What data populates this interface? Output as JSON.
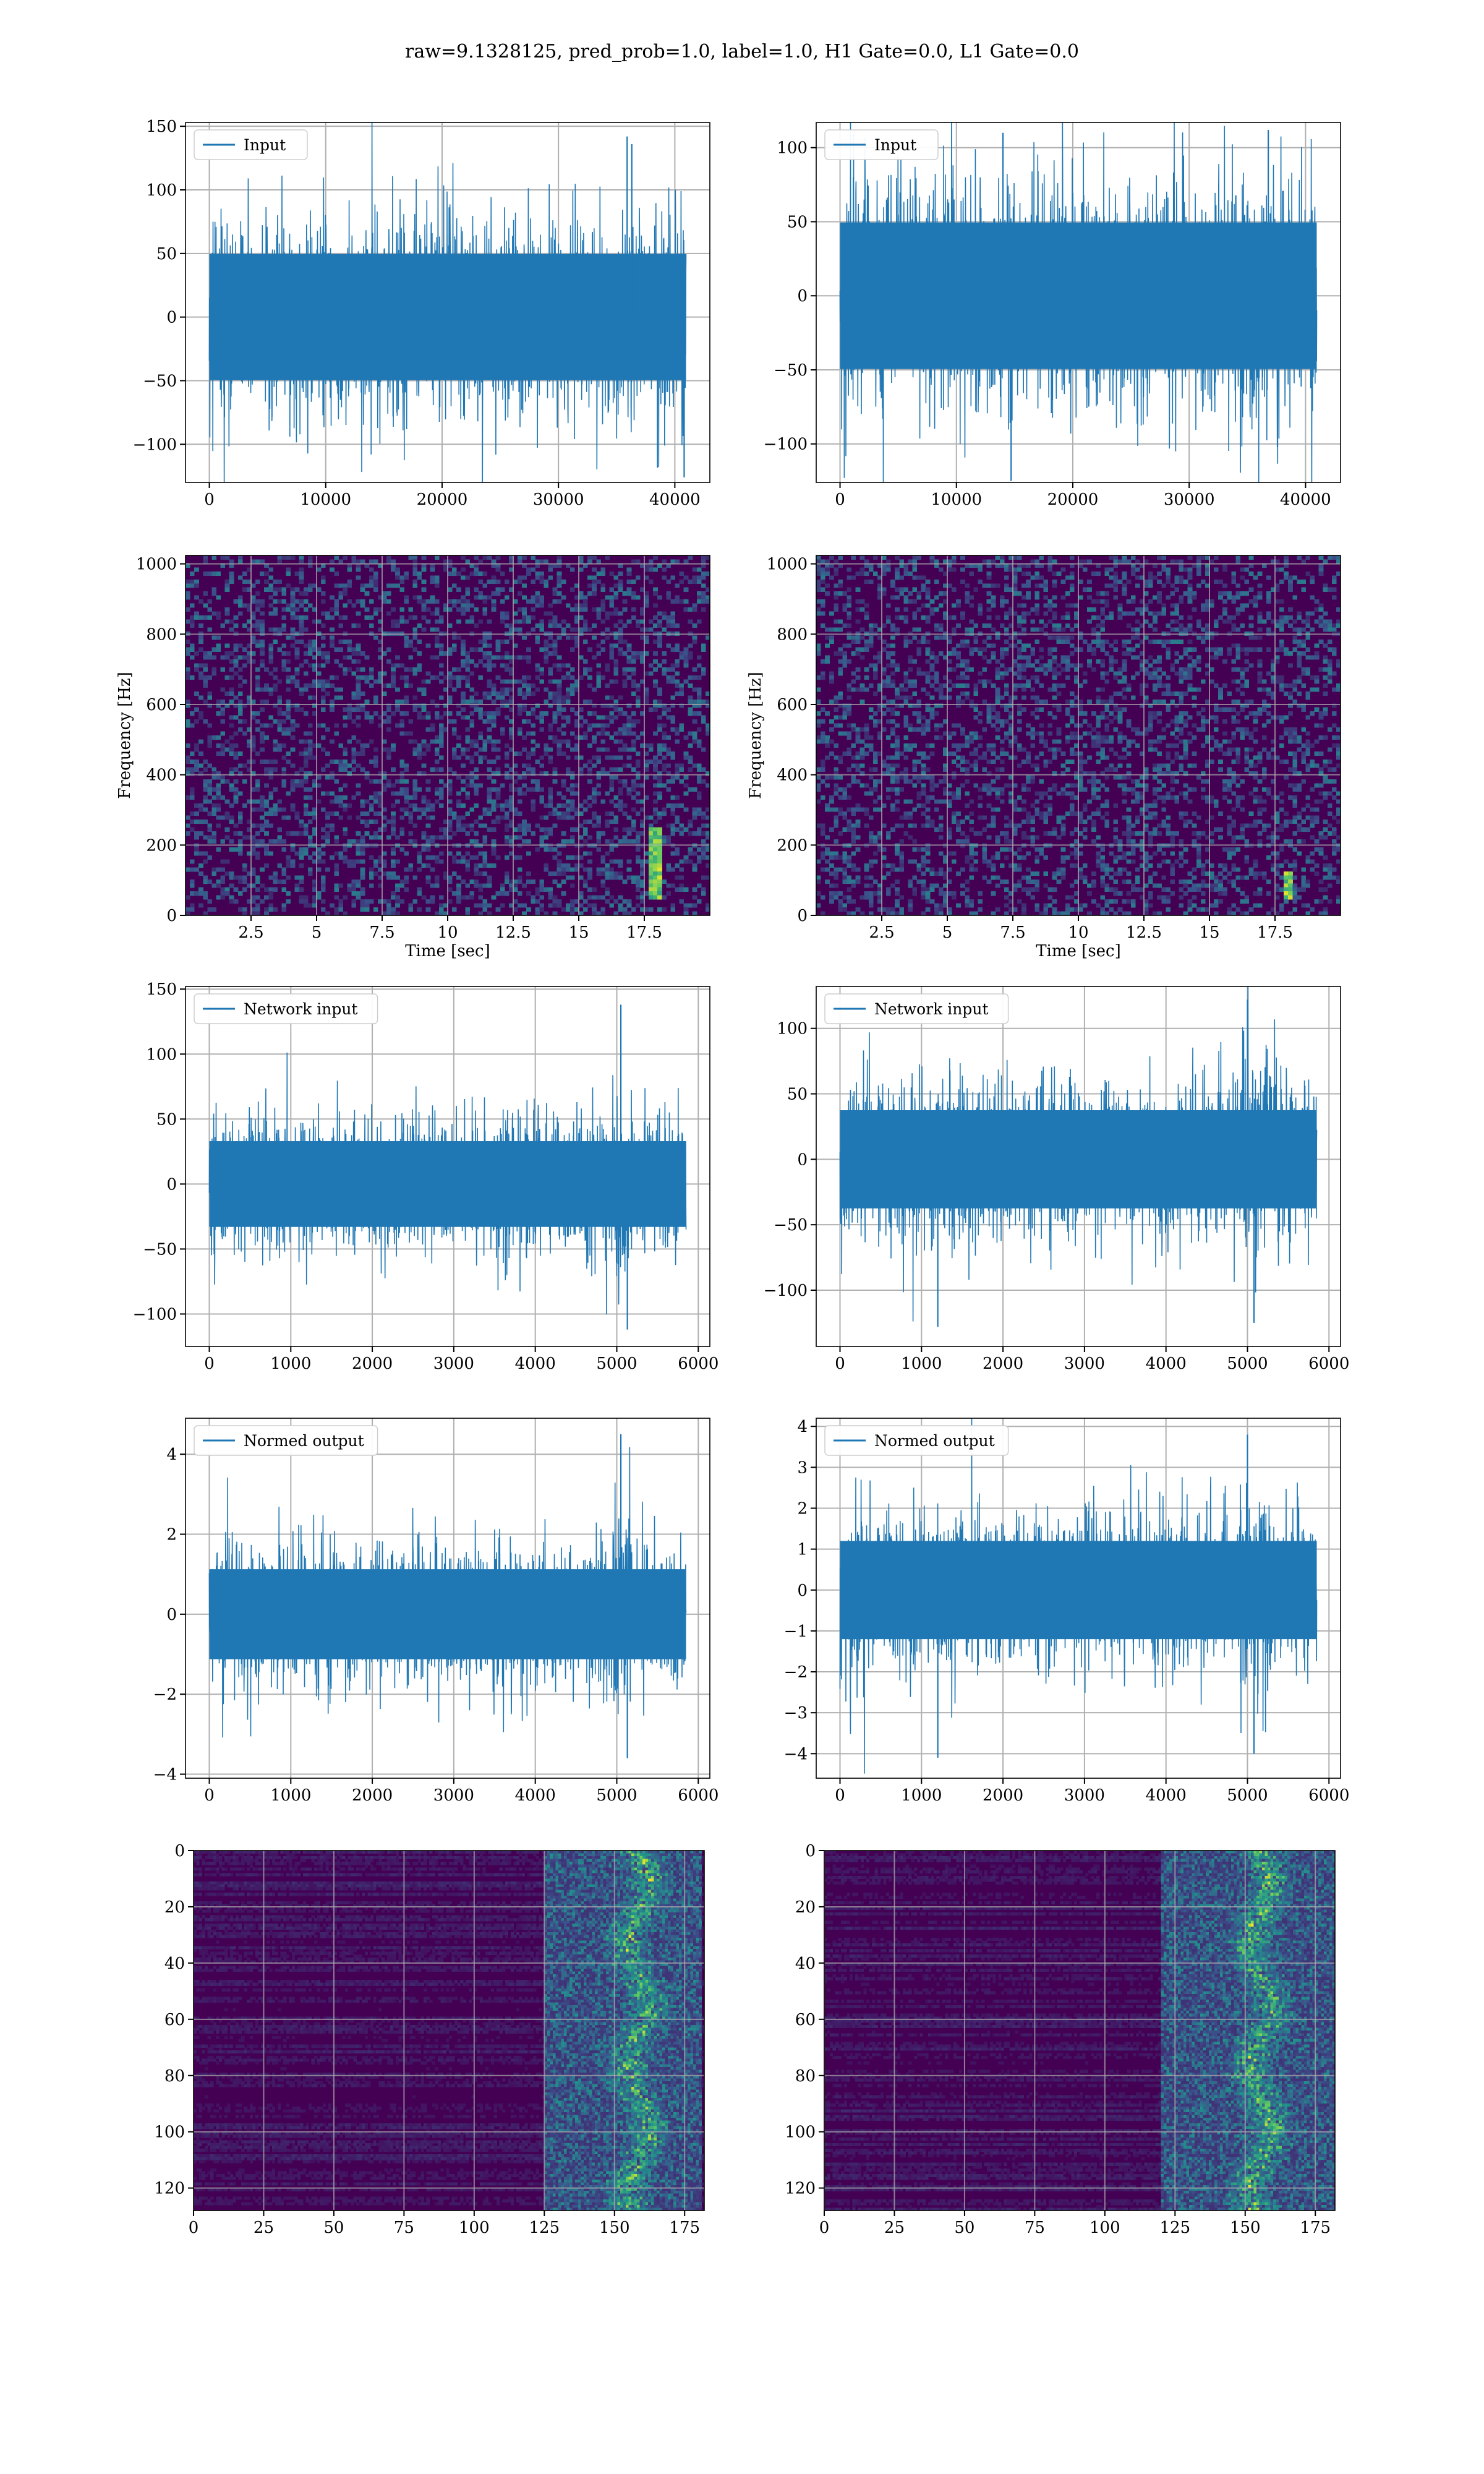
{
  "figure": {
    "title": "raw=9.1328125, pred_prob=1.0, label=1.0, H1 Gate=0.0, L1 Gate=0.0"
  },
  "colors": {
    "line": "#1f77b4",
    "grid": "#b0b0b0",
    "viridis_low": "#440154",
    "viridis_mid": "#21918c",
    "viridis_high": "#fde725"
  },
  "chart_data": [
    {
      "id": "input-left",
      "type": "line",
      "legend": "Input",
      "legend_loc": "upper left",
      "grid": true,
      "x_range": [
        0,
        40960
      ],
      "xlim": [
        -2048,
        43008
      ],
      "ylim": [
        -130,
        153
      ],
      "xticks": [
        0,
        10000,
        20000,
        30000,
        40000
      ],
      "yticks": [
        -100,
        -50,
        0,
        50,
        100,
        150
      ],
      "amplitude_approx": 33,
      "peaks": [
        {
          "x": 35900,
          "y": 142
        },
        {
          "x": 36300,
          "y": 136
        },
        {
          "x": 40800,
          "y": -126
        }
      ]
    },
    {
      "id": "input-right",
      "type": "line",
      "legend": "Input",
      "legend_loc": "upper left",
      "grid": true,
      "x_range": [
        0,
        40960
      ],
      "xlim": [
        -2048,
        43008
      ],
      "ylim": [
        -126,
        117
      ],
      "xticks": [
        0,
        10000,
        20000,
        30000,
        40000
      ],
      "yticks": [
        -100,
        -50,
        0,
        50,
        100
      ],
      "amplitude_approx": 33,
      "peaks": [
        {
          "x": 14000,
          "y": 110
        },
        {
          "x": 36800,
          "y": 112
        },
        {
          "x": 14700,
          "y": -125
        }
      ]
    },
    {
      "id": "spectrogram-left",
      "type": "heatmap",
      "grid": true,
      "xlabel": "Time [sec]",
      "ylabel": "Frequency [Hz]",
      "xlim": [
        0,
        20
      ],
      "ylim": [
        0,
        1024
      ],
      "xticks": [
        2.5,
        5.0,
        7.5,
        10.0,
        12.5,
        15.0,
        17.5
      ],
      "yticks": [
        0,
        200,
        400,
        600,
        800,
        1000
      ],
      "chirp": {
        "t": [
          17.7,
          18.1
        ],
        "f": [
          40,
          250
        ]
      }
    },
    {
      "id": "spectrogram-right",
      "type": "heatmap",
      "grid": true,
      "xlabel": "Time [sec]",
      "ylabel": "Frequency [Hz]",
      "xlim": [
        0,
        20
      ],
      "ylim": [
        0,
        1024
      ],
      "xticks": [
        2.5,
        5.0,
        7.5,
        10.0,
        12.5,
        15.0,
        17.5
      ],
      "yticks": [
        0,
        200,
        400,
        600,
        800,
        1000
      ],
      "chirp": {
        "t": [
          17.8,
          18.1
        ],
        "f": [
          40,
          130
        ]
      }
    },
    {
      "id": "network-input-left",
      "type": "line",
      "legend": "Network input",
      "legend_loc": "upper left",
      "grid": true,
      "x_range": [
        0,
        5850
      ],
      "xlim": [
        -292,
        6142
      ],
      "ylim": [
        -125,
        152
      ],
      "xticks": [
        0,
        1000,
        2000,
        3000,
        4000,
        5000,
        6000
      ],
      "yticks": [
        -100,
        -50,
        0,
        50,
        100,
        150
      ],
      "amplitude_approx": 22,
      "burst": {
        "x": [
          4950,
          5200
        ],
        "gain": 1.6
      },
      "peaks": [
        {
          "x": 5050,
          "y": 138
        },
        {
          "x": 5130,
          "y": -112
        }
      ]
    },
    {
      "id": "network-input-right",
      "type": "line",
      "legend": "Network input",
      "legend_loc": "upper left",
      "grid": true,
      "x_range": [
        0,
        5850
      ],
      "xlim": [
        -292,
        6142
      ],
      "ylim": [
        -143,
        132
      ],
      "xticks": [
        0,
        1000,
        2000,
        3000,
        4000,
        5000,
        6000
      ],
      "yticks": [
        -100,
        -50,
        0,
        50,
        100
      ],
      "amplitude_approx": 25,
      "burst": {
        "x": [
          4900,
          5250
        ],
        "gain": 1.5
      },
      "peaks": [
        {
          "x": 5000,
          "y": 122
        },
        {
          "x": 1200,
          "y": -128
        },
        {
          "x": 5080,
          "y": -125
        }
      ]
    },
    {
      "id": "normed-output-left",
      "type": "line",
      "legend": "Normed output",
      "legend_loc": "upper left",
      "grid": true,
      "x_range": [
        0,
        5850
      ],
      "xlim": [
        -292,
        6142
      ],
      "ylim": [
        -4.1,
        4.9
      ],
      "xticks": [
        0,
        1000,
        2000,
        3000,
        4000,
        5000,
        6000
      ],
      "yticks": [
        -4,
        -2,
        0,
        2,
        4
      ],
      "amplitude_approx": 0.75,
      "burst": {
        "x": [
          4950,
          5200
        ],
        "gain": 1.6
      },
      "peaks": [
        {
          "x": 5050,
          "y": 4.5
        },
        {
          "x": 5130,
          "y": -3.6
        }
      ]
    },
    {
      "id": "normed-output-right",
      "type": "line",
      "legend": "Normed output",
      "legend_loc": "upper left",
      "grid": true,
      "x_range": [
        0,
        5850
      ],
      "xlim": [
        -292,
        6142
      ],
      "ylim": [
        -4.6,
        4.2
      ],
      "xticks": [
        0,
        1000,
        2000,
        3000,
        4000,
        5000,
        6000
      ],
      "yticks": [
        -4,
        -3,
        -2,
        -1,
        0,
        1,
        2,
        3,
        4
      ],
      "amplitude_approx": 0.8,
      "burst": {
        "x": [
          4900,
          5250
        ],
        "gain": 1.5
      },
      "peaks": [
        {
          "x": 5000,
          "y": 3.8
        },
        {
          "x": 1200,
          "y": -4.1
        },
        {
          "x": 5080,
          "y": -4.0
        }
      ]
    },
    {
      "id": "feature-map-left",
      "type": "heatmap",
      "grid": true,
      "xlim": [
        0,
        182
      ],
      "ylim": [
        128,
        0
      ],
      "xticks": [
        0,
        25,
        50,
        75,
        100,
        125,
        150,
        175
      ],
      "yticks": [
        0,
        20,
        40,
        60,
        80,
        100,
        120
      ],
      "active_columns": [
        125,
        180
      ],
      "peak_column": 158
    },
    {
      "id": "feature-map-right",
      "type": "heatmap",
      "grid": true,
      "xlim": [
        0,
        182
      ],
      "ylim": [
        128,
        0
      ],
      "xticks": [
        0,
        25,
        50,
        75,
        100,
        125,
        150,
        175
      ],
      "yticks": [
        0,
        20,
        40,
        60,
        80,
        100,
        120
      ],
      "active_columns": [
        120,
        182
      ],
      "peak_column": 155
    }
  ]
}
